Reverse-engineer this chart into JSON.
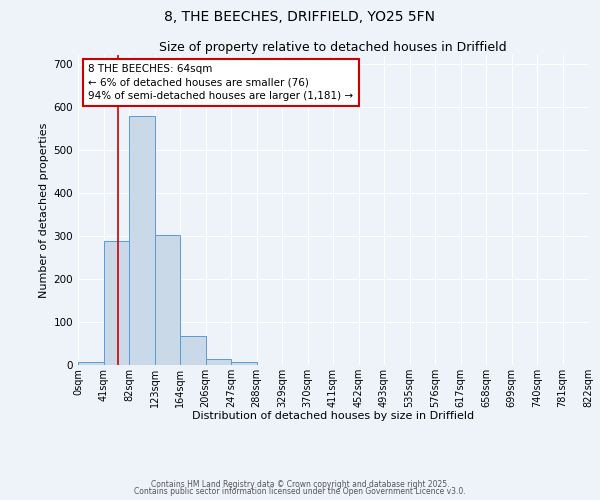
{
  "title": "8, THE BEECHES, DRIFFIELD, YO25 5FN",
  "subtitle": "Size of property relative to detached houses in Driffield",
  "xlabel": "Distribution of detached houses by size in Driffield",
  "ylabel": "Number of detached properties",
  "bar_values": [
    8,
    288,
    578,
    302,
    68,
    15,
    8,
    0,
    0,
    0,
    0,
    0,
    0,
    0,
    0,
    0,
    0,
    0,
    0,
    0
  ],
  "bar_color": "#c9d9e8",
  "bar_edge_color": "#5b9bd5",
  "x_labels": [
    "0sqm",
    "41sqm",
    "82sqm",
    "123sqm",
    "164sqm",
    "206sqm",
    "247sqm",
    "288sqm",
    "329sqm",
    "370sqm",
    "411sqm",
    "452sqm",
    "493sqm",
    "535sqm",
    "576sqm",
    "617sqm",
    "658sqm",
    "699sqm",
    "740sqm",
    "781sqm",
    "822sqm"
  ],
  "ylim": [
    0,
    720
  ],
  "yticks": [
    0,
    100,
    200,
    300,
    400,
    500,
    600,
    700
  ],
  "annotation_text": "8 THE BEECHES: 64sqm\n← 6% of detached houses are smaller (76)\n94% of semi-detached houses are larger (1,181) →",
  "annotation_box_color": "#ffffff",
  "annotation_box_edge": "#cc0000",
  "background_color": "#eef2f9",
  "grid_color": "#ffffff",
  "title_fontsize": 10,
  "subtitle_fontsize": 9,
  "tick_fontsize": 7,
  "ylabel_fontsize": 8,
  "xlabel_fontsize": 8,
  "footer_line1": "Contains HM Land Registry data © Crown copyright and database right 2025.",
  "footer_line2": "Contains public sector information licensed under the Open Government Licence v3.0."
}
